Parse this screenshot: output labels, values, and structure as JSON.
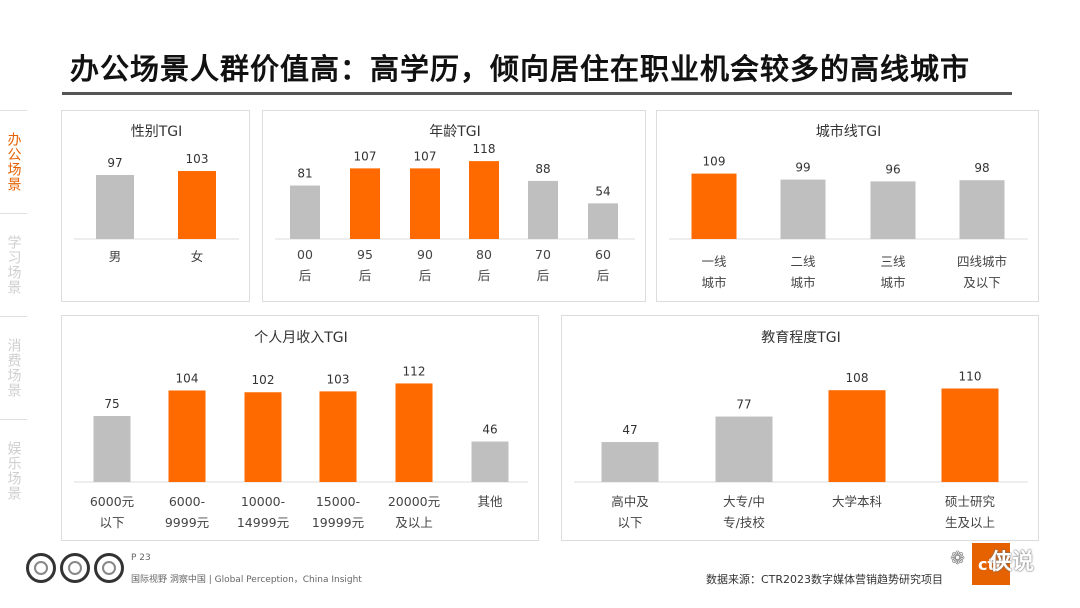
{
  "title": "办公场景人群价值高：高学历，倾向居住在职业机会较多的高线城市",
  "side_tabs": [
    "办公场景",
    "学习场景",
    "消费场景",
    "娱乐场景"
  ],
  "active_tab": 0,
  "colors": {
    "highlight": "#FF6A00",
    "base": "#BFBFBF",
    "tab_active": "#E66100"
  },
  "chart_data": [
    {
      "type": "bar",
      "title": "性别TGI",
      "categories": [
        [
          "男"
        ],
        [
          "女"
        ]
      ],
      "values": [
        97,
        103
      ],
      "highlight": [
        false,
        true
      ]
    },
    {
      "type": "bar",
      "title": "年龄TGI",
      "categories": [
        [
          "00",
          "后"
        ],
        [
          "95",
          "后"
        ],
        [
          "90",
          "后"
        ],
        [
          "80",
          "后"
        ],
        [
          "70",
          "后"
        ],
        [
          "60",
          "后"
        ]
      ],
      "values": [
        81,
        107,
        107,
        118,
        88,
        54
      ],
      "highlight": [
        false,
        true,
        true,
        true,
        false,
        false
      ]
    },
    {
      "type": "bar",
      "title": "城市线TGI",
      "categories": [
        [
          "一线",
          "城市"
        ],
        [
          "二线",
          "城市"
        ],
        [
          "三线",
          "城市"
        ],
        [
          "四线城市",
          "及以下"
        ]
      ],
      "values": [
        109,
        99,
        96,
        98
      ],
      "highlight": [
        true,
        false,
        false,
        false
      ]
    },
    {
      "type": "bar",
      "title": "个人月收入TGI",
      "categories": [
        [
          "6000元",
          "以下"
        ],
        [
          "6000-",
          "9999元"
        ],
        [
          "10000-",
          "14999元"
        ],
        [
          "15000-",
          "19999元"
        ],
        [
          "20000元",
          "及以上"
        ],
        [
          "其他"
        ]
      ],
      "values": [
        75,
        104,
        102,
        103,
        112,
        46
      ],
      "highlight": [
        false,
        true,
        true,
        true,
        true,
        false
      ]
    },
    {
      "type": "bar",
      "title": "教育程度TGI",
      "categories": [
        [
          "高中及",
          "以下"
        ],
        [
          "大专/中",
          "专/技校"
        ],
        [
          "大学本科"
        ],
        [
          "硕士研究",
          "生及以上"
        ]
      ],
      "values": [
        47,
        77,
        108,
        110
      ],
      "highlight": [
        false,
        false,
        true,
        true
      ]
    }
  ],
  "footer": {
    "page": "P 23",
    "tagline": "国际视野  洞察中国 | Global Perception，China Insight",
    "source": "数据来源：CTR2023数字媒体营销趋势研究项目",
    "brand": "ctr",
    "watermark": "侠说"
  }
}
